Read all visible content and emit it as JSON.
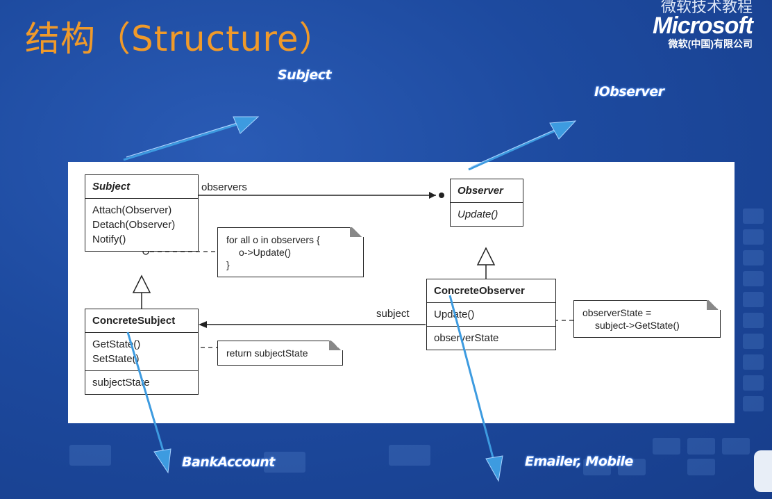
{
  "slide": {
    "title": "结构（Structure）"
  },
  "logo": {
    "top_text": "微软技术教程",
    "brand": "Microsoft",
    "bottom_text": "微软(中国)有限公司"
  },
  "annotations": {
    "subject": "Subject",
    "iobserver": "IObserver",
    "bank_account": "BankAccount",
    "emailer_mobile": "Emailer, Mobile"
  },
  "diagram": {
    "subject": {
      "name": "Subject",
      "methods": [
        "Attach(Observer)",
        "Detach(Observer)",
        "Notify()"
      ]
    },
    "observer": {
      "name": "Observer",
      "methods": [
        "Update()"
      ]
    },
    "concrete_subject": {
      "name": "ConcreteSubject",
      "methods": [
        "GetState()",
        "SetState()"
      ],
      "fields": [
        "subjectState"
      ]
    },
    "concrete_observer": {
      "name": "ConcreteObserver",
      "methods": [
        "Update()"
      ],
      "fields": [
        "observerState"
      ]
    },
    "notes": {
      "notify_line1": "for all o in observers {",
      "notify_line2": "o->Update()",
      "notify_line3": "}",
      "getstate": "return subjectState",
      "update_line1": "observerState =",
      "update_line2": "subject->GetState()"
    },
    "labels": {
      "observers": "observers",
      "subject": "subject"
    }
  },
  "colors": {
    "background": "#1d4a9f",
    "title": "#f09a2a",
    "annotation_arrow": "#3d9be0"
  }
}
